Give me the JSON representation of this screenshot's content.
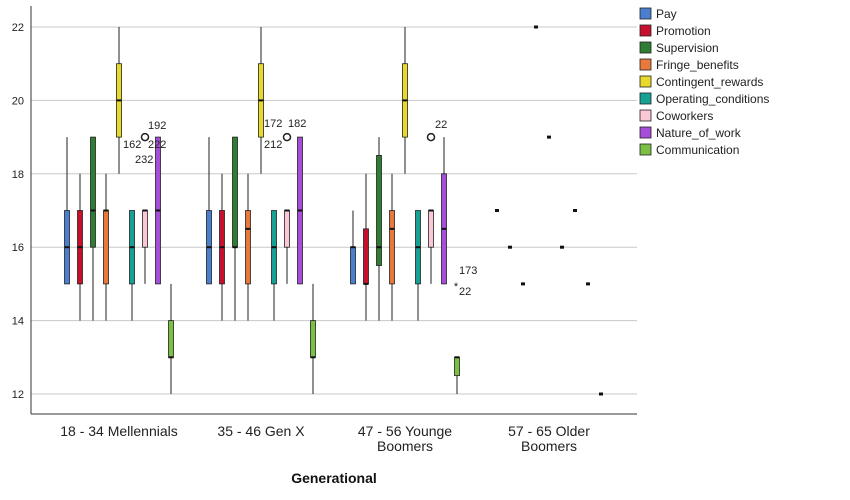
{
  "chart_data": {
    "type": "boxplot",
    "title": "",
    "xlabel": "Generational",
    "ylabel": "",
    "ylim": [
      11.5,
      22.5
    ],
    "yticks": [
      12,
      14,
      16,
      18,
      20,
      22
    ],
    "grid": true,
    "legend_position": "top-right",
    "categories": [
      [
        "18 - 34 Mellennials"
      ],
      [
        "35 - 46 Gen X"
      ],
      [
        "47 - 56 Younge",
        "Boomers"
      ],
      [
        "57 - 65 Older",
        "Boomers"
      ]
    ],
    "series": [
      {
        "name": "Pay",
        "color": "#4a7fd0",
        "boxes": [
          {
            "min": 15,
            "q1": 15,
            "median": 16,
            "q3": 17,
            "max": 19
          },
          {
            "min": 15,
            "q1": 15,
            "median": 16,
            "q3": 17,
            "max": 19
          },
          {
            "min": 15,
            "q1": 15,
            "median": 16,
            "q3": 16,
            "max": 17
          },
          {
            "single": 17
          }
        ]
      },
      {
        "name": "Promotion",
        "color": "#c8102e",
        "boxes": [
          {
            "min": 14,
            "q1": 15,
            "median": 16,
            "q3": 17,
            "max": 18
          },
          {
            "min": 14,
            "q1": 15,
            "median": 16,
            "q3": 17,
            "max": 18
          },
          {
            "min": 14,
            "q1": 15,
            "median": 15,
            "q3": 16.5,
            "max": 18
          },
          {
            "single": 16
          }
        ]
      },
      {
        "name": "Supervision",
        "color": "#2e7d32",
        "boxes": [
          {
            "min": 14,
            "q1": 16,
            "median": 17,
            "q3": 19,
            "max": 19
          },
          {
            "min": 14,
            "q1": 16,
            "median": 16,
            "q3": 19,
            "max": 19
          },
          {
            "min": 14,
            "q1": 15.5,
            "median": 16,
            "q3": 18.5,
            "max": 19
          },
          {
            "single": 15
          }
        ]
      },
      {
        "name": "Fringe_benefits",
        "color": "#e8793a",
        "boxes": [
          {
            "min": 14,
            "q1": 15,
            "median": 17,
            "q3": 17,
            "max": 18
          },
          {
            "min": 14,
            "q1": 15,
            "median": 16.5,
            "q3": 17,
            "max": 18
          },
          {
            "min": 14,
            "q1": 15,
            "median": 16.5,
            "q3": 17,
            "max": 18
          },
          {
            "single": 22
          }
        ]
      },
      {
        "name": "Contingent_rewards",
        "color": "#e8d92c",
        "boxes": [
          {
            "min": 18,
            "q1": 19,
            "median": 20,
            "q3": 21,
            "max": 22
          },
          {
            "min": 18,
            "q1": 19,
            "median": 20,
            "q3": 21,
            "max": 22
          },
          {
            "min": 18,
            "q1": 19,
            "median": 20,
            "q3": 21,
            "max": 22
          },
          {
            "single": 19
          }
        ]
      },
      {
        "name": "Operating_conditions",
        "color": "#17a094",
        "boxes": [
          {
            "min": 14,
            "q1": 15,
            "median": 16,
            "q3": 17,
            "max": 17
          },
          {
            "min": 14,
            "q1": 15,
            "median": 16,
            "q3": 17,
            "max": 17
          },
          {
            "min": 14,
            "q1": 15,
            "median": 16,
            "q3": 17,
            "max": 17
          },
          {
            "single": 16
          }
        ]
      },
      {
        "name": "Coworkers",
        "color": "#f9c8d4",
        "boxes": [
          {
            "min": 15,
            "q1": 16,
            "median": 17,
            "q3": 17,
            "max": 17
          },
          {
            "min": 15,
            "q1": 16,
            "median": 17,
            "q3": 17,
            "max": 17
          },
          {
            "min": 15,
            "q1": 16,
            "median": 17,
            "q3": 17,
            "max": 17
          },
          {
            "single": 17
          }
        ]
      },
      {
        "name": "Nature_of_work",
        "color": "#a64ed9",
        "boxes": [
          {
            "min": 15,
            "q1": 15,
            "median": 17,
            "q3": 19,
            "max": 19
          },
          {
            "min": 15,
            "q1": 15,
            "median": 17,
            "q3": 19,
            "max": 19
          },
          {
            "min": 15,
            "q1": 15,
            "median": 16.5,
            "q3": 18,
            "max": 19
          },
          {
            "single": 15
          }
        ]
      },
      {
        "name": "Communication",
        "color": "#7ac043",
        "boxes": [
          {
            "min": 12,
            "q1": 13,
            "median": 13,
            "q3": 14,
            "max": 15
          },
          {
            "min": 12,
            "q1": 13,
            "median": 13,
            "q3": 14,
            "max": 15
          },
          {
            "min": 12,
            "q1": 12.5,
            "median": 13,
            "q3": 13,
            "max": 13
          },
          {
            "single": 12
          }
        ]
      }
    ],
    "outliers": [
      {
        "category": 0,
        "series": "Coworkers",
        "value": 19,
        "symbol": "circle",
        "labels": [
          "192",
          "162",
          "222",
          "232"
        ]
      },
      {
        "category": 1,
        "series": "Coworkers",
        "value": 19,
        "symbol": "circle",
        "labels": [
          "172",
          "182",
          "212"
        ]
      },
      {
        "category": 2,
        "series": "Coworkers",
        "value": 19,
        "symbol": "circle",
        "labels": [
          "22"
        ]
      },
      {
        "category": 2,
        "series": "Nature_of_work",
        "value": 15,
        "symbol": "star",
        "labels": [
          "173",
          "22"
        ]
      }
    ]
  }
}
